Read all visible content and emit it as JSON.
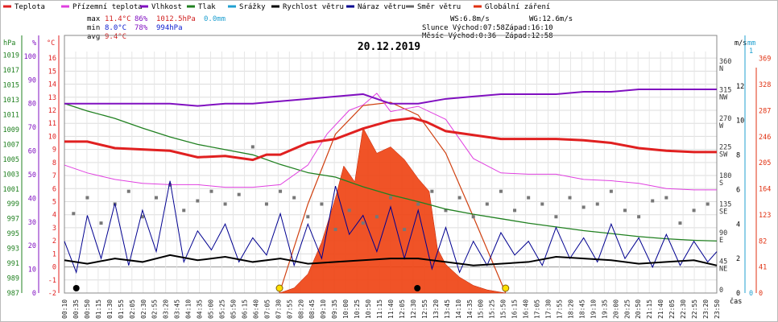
{
  "chart_data": {
    "type": "line",
    "title": "20.12.2019",
    "xlabel": "čas",
    "legend": [
      {
        "name": "Teplota",
        "color": "#e02020"
      },
      {
        "name": "Přízemní teplota",
        "color": "#e040e0"
      },
      {
        "name": "Vlhkost",
        "color": "#8010c0"
      },
      {
        "name": "Tlak",
        "color": "#208020"
      },
      {
        "name": "Srážky",
        "color": "#20a0d0"
      },
      {
        "name": "Rychlost větru",
        "color": "#000000"
      },
      {
        "name": "Náraz větru",
        "color": "#000090"
      },
      {
        "name": "Směr větru",
        "color": "#666666"
      },
      {
        "name": "Globální záření",
        "color": "#e03010"
      }
    ],
    "stats": {
      "max": {
        "label": "max",
        "temp": "11.4°C",
        "hum": "86%",
        "press": "1012.5hPa",
        "rain": "0.0mm"
      },
      "min": {
        "label": "min",
        "temp": "8.0°C",
        "hum": "78%",
        "press": "994hPa"
      },
      "avg": {
        "label": "avg",
        "temp": "9.4°C"
      },
      "ws": "WS:6.8m/s",
      "wg": "WG:12.6m/s",
      "sun": "Slunce Východ:07:58",
      "sun_set": "Západ:16:10",
      "moon": "Měsíc  Východ:0:36",
      "moon_set": "Západ:12:58"
    },
    "axes": {
      "pressure": {
        "unit": "hPa",
        "color": "#208020",
        "ticks": [
          "1019",
          "1017",
          "1015",
          "1013",
          "1011",
          "1009",
          "1007",
          "1005",
          "1003",
          "1001",
          "999",
          "997",
          "995",
          "993",
          "991",
          "989",
          "987"
        ]
      },
      "humidity": {
        "unit": "%",
        "color": "#8010c0",
        "ticks": [
          "100",
          "90",
          "80",
          "70",
          "60",
          "50",
          "40",
          "30",
          "20",
          "10",
          "0"
        ]
      },
      "temperature": {
        "unit": "°C",
        "color": "#e02020",
        "ticks": [
          "16",
          "15",
          "14",
          "13",
          "12",
          "11",
          "10",
          "9",
          "8",
          "7",
          "6",
          "5",
          "4",
          "3",
          "2",
          "1",
          "0",
          "-1",
          "-2"
        ]
      },
      "wind_dir": {
        "ticks": [
          {
            "v": "360",
            "d": "N"
          },
          {
            "v": "315",
            "d": "NW"
          },
          {
            "v": "270",
            "d": "W"
          },
          {
            "v": "225",
            "d": "SW"
          },
          {
            "v": "180",
            "d": "S"
          },
          {
            "v": "135",
            "d": "SE"
          },
          {
            "v": "90",
            "d": "E"
          },
          {
            "v": "45",
            "d": "NE"
          },
          {
            "v": "0",
            "d": ""
          }
        ]
      },
      "wind_speed": {
        "unit": "m/s",
        "ticks": [
          "12",
          "10",
          "8",
          "6",
          "4",
          "2",
          "0"
        ]
      },
      "rain": {
        "unit": "mm",
        "color": "#20a0d0",
        "ticks": [
          "1",
          "0"
        ]
      },
      "radiation": {
        "color": "#e03010",
        "ticks": [
          "369",
          "328",
          "287",
          "246",
          "205",
          "164",
          "123",
          "82",
          "41",
          "0"
        ]
      }
    },
    "x_ticks": [
      "00:10",
      "00:35",
      "00:50",
      "01:15",
      "01:30",
      "01:55",
      "02:05",
      "02:30",
      "02:55",
      "03:20",
      "03:45",
      "04:10",
      "04:35",
      "05:00",
      "05:25",
      "05:50",
      "06:15",
      "06:40",
      "07:05",
      "07:30",
      "07:55",
      "08:20",
      "08:45",
      "09:10",
      "09:35",
      "10:00",
      "10:25",
      "10:50",
      "11:15",
      "11:40",
      "12:05",
      "12:30",
      "12:55",
      "13:20",
      "13:45",
      "14:10",
      "14:35",
      "15:00",
      "15:25",
      "15:50",
      "16:15",
      "16:40",
      "17:05",
      "17:30",
      "17:55",
      "18:20",
      "18:45",
      "19:10",
      "19:35",
      "20:00",
      "20:25",
      "20:50",
      "21:15",
      "21:40",
      "22:05",
      "22:30",
      "22:55",
      "23:20",
      "23:50"
    ],
    "x_range_hours": [
      0.17,
      23.83
    ],
    "sunrise": 7.97,
    "sunset": 16.17,
    "moon_rise": 0.6,
    "moon_set": 12.97,
    "series": {
      "temperature": [
        [
          0.17,
          9.6
        ],
        [
          1,
          9.6
        ],
        [
          2,
          9.1
        ],
        [
          3,
          9.0
        ],
        [
          4,
          8.9
        ],
        [
          5,
          8.4
        ],
        [
          6,
          8.5
        ],
        [
          7,
          8.2
        ],
        [
          7.5,
          8.6
        ],
        [
          8,
          8.6
        ],
        [
          9,
          9.5
        ],
        [
          10,
          9.8
        ],
        [
          11,
          10.6
        ],
        [
          12,
          11.2
        ],
        [
          12.8,
          11.4
        ],
        [
          13.3,
          11.1
        ],
        [
          14,
          10.4
        ],
        [
          15,
          10.1
        ],
        [
          16,
          9.8
        ],
        [
          17,
          9.8
        ],
        [
          18,
          9.8
        ],
        [
          19,
          9.7
        ],
        [
          20,
          9.5
        ],
        [
          21,
          9.1
        ],
        [
          22,
          8.9
        ],
        [
          23,
          8.8
        ],
        [
          23.83,
          8.8
        ]
      ],
      "humidity": [
        [
          0.17,
          80
        ],
        [
          2,
          80
        ],
        [
          3,
          80
        ],
        [
          4,
          80
        ],
        [
          5,
          79
        ],
        [
          6,
          80
        ],
        [
          7,
          80
        ],
        [
          8,
          81
        ],
        [
          9,
          82
        ],
        [
          10,
          83
        ],
        [
          11,
          84
        ],
        [
          11.5,
          82
        ],
        [
          12,
          80
        ],
        [
          13,
          80
        ],
        [
          14,
          82
        ],
        [
          15,
          83
        ],
        [
          16,
          84
        ],
        [
          17,
          84
        ],
        [
          18,
          84
        ],
        [
          19,
          85
        ],
        [
          20,
          85
        ],
        [
          21,
          86
        ],
        [
          22,
          86
        ],
        [
          23.83,
          86
        ]
      ],
      "ground_temp": [
        [
          0.17,
          7.8
        ],
        [
          1,
          7.2
        ],
        [
          2,
          6.7
        ],
        [
          3,
          6.4
        ],
        [
          4,
          6.3
        ],
        [
          5,
          6.3
        ],
        [
          6,
          6.1
        ],
        [
          7,
          6.1
        ],
        [
          8,
          6.3
        ],
        [
          9,
          7.8
        ],
        [
          9.7,
          10.2
        ],
        [
          10.5,
          12.0
        ],
        [
          11,
          12.4
        ],
        [
          11.5,
          13.3
        ],
        [
          12,
          11.9
        ],
        [
          13,
          12.3
        ],
        [
          14,
          11.3
        ],
        [
          15,
          8.3
        ],
        [
          16,
          7.2
        ],
        [
          17,
          7.1
        ],
        [
          18,
          7.1
        ],
        [
          19,
          6.7
        ],
        [
          20,
          6.6
        ],
        [
          21,
          6.4
        ],
        [
          22,
          6.0
        ],
        [
          23,
          5.9
        ],
        [
          23.83,
          5.9
        ]
      ],
      "pressure": [
        [
          0.17,
          1012.5
        ],
        [
          1,
          1011.5
        ],
        [
          2,
          1010.5
        ],
        [
          3,
          1009.2
        ],
        [
          4,
          1008.0
        ],
        [
          5,
          1007.0
        ],
        [
          6,
          1006.3
        ],
        [
          7,
          1005.6
        ],
        [
          8,
          1004.3
        ],
        [
          9,
          1003.2
        ],
        [
          10,
          1002.6
        ],
        [
          11,
          1001.3
        ],
        [
          12,
          1000.2
        ],
        [
          13,
          999.3
        ],
        [
          14,
          998.3
        ],
        [
          15,
          997.6
        ],
        [
          16,
          997.0
        ],
        [
          17,
          996.4
        ],
        [
          18,
          995.9
        ],
        [
          19,
          995.4
        ],
        [
          20,
          995.0
        ],
        [
          21,
          994.6
        ],
        [
          22,
          994.3
        ],
        [
          23,
          994.1
        ],
        [
          23.83,
          994.0
        ]
      ],
      "wind_speed": [
        [
          0.17,
          1.9
        ],
        [
          1,
          1.7
        ],
        [
          2,
          2.0
        ],
        [
          3,
          1.8
        ],
        [
          4,
          2.2
        ],
        [
          5,
          1.9
        ],
        [
          6,
          2.1
        ],
        [
          7,
          1.8
        ],
        [
          8,
          2.0
        ],
        [
          9,
          1.7
        ],
        [
          10,
          1.8
        ],
        [
          11,
          1.9
        ],
        [
          12,
          2.0
        ],
        [
          13,
          2.0
        ],
        [
          14,
          1.8
        ],
        [
          15,
          1.6
        ],
        [
          16,
          1.7
        ],
        [
          17,
          1.8
        ],
        [
          18,
          2.1
        ],
        [
          19,
          2.0
        ],
        [
          20,
          1.9
        ],
        [
          21,
          1.7
        ],
        [
          22,
          1.8
        ],
        [
          23,
          1.9
        ],
        [
          23.83,
          1.6
        ]
      ],
      "wind_gust": [
        [
          0.17,
          3.0
        ],
        [
          0.6,
          1.2
        ],
        [
          1,
          4.5
        ],
        [
          1.5,
          2.0
        ],
        [
          2,
          5.2
        ],
        [
          2.5,
          1.6
        ],
        [
          3,
          4.8
        ],
        [
          3.5,
          2.4
        ],
        [
          4,
          6.5
        ],
        [
          4.5,
          1.8
        ],
        [
          5,
          3.6
        ],
        [
          5.5,
          2.5
        ],
        [
          6,
          4.0
        ],
        [
          6.5,
          1.8
        ],
        [
          7,
          3.2
        ],
        [
          7.5,
          2.2
        ],
        [
          8,
          4.6
        ],
        [
          8.5,
          1.6
        ],
        [
          9,
          4.0
        ],
        [
          9.5,
          2.0
        ],
        [
          10,
          6.2
        ],
        [
          10.5,
          3.4
        ],
        [
          11,
          4.5
        ],
        [
          11.5,
          2.4
        ],
        [
          12,
          5.0
        ],
        [
          12.5,
          2.0
        ],
        [
          13,
          4.8
        ],
        [
          13.5,
          1.4
        ],
        [
          14,
          3.8
        ],
        [
          14.5,
          1.2
        ],
        [
          15,
          3.0
        ],
        [
          15.5,
          1.6
        ],
        [
          16,
          3.5
        ],
        [
          16.5,
          2.2
        ],
        [
          17,
          3.0
        ],
        [
          17.5,
          1.6
        ],
        [
          18,
          3.8
        ],
        [
          18.5,
          2.0
        ],
        [
          19,
          3.2
        ],
        [
          19.5,
          1.8
        ],
        [
          20,
          4.0
        ],
        [
          20.5,
          2.0
        ],
        [
          21,
          3.2
        ],
        [
          21.5,
          1.5
        ],
        [
          22,
          3.4
        ],
        [
          22.5,
          1.6
        ],
        [
          23,
          3.0
        ],
        [
          23.5,
          1.8
        ],
        [
          23.83,
          2.4
        ]
      ],
      "wind_dir_sample": [
        [
          0.5,
          125
        ],
        [
          1,
          150
        ],
        [
          1.5,
          110
        ],
        [
          2,
          140
        ],
        [
          2.5,
          160
        ],
        [
          3,
          120
        ],
        [
          3.5,
          150
        ],
        [
          4,
          170
        ],
        [
          4.5,
          130
        ],
        [
          5,
          145
        ],
        [
          5.5,
          160
        ],
        [
          6,
          140
        ],
        [
          6.5,
          155
        ],
        [
          7,
          230
        ],
        [
          7.5,
          140
        ],
        [
          8,
          160
        ],
        [
          8.5,
          150
        ],
        [
          9,
          120
        ],
        [
          9.5,
          140
        ],
        [
          10,
          100
        ],
        [
          10.5,
          130
        ],
        [
          11,
          110
        ],
        [
          11.5,
          120
        ],
        [
          12,
          150
        ],
        [
          12.5,
          100
        ],
        [
          13,
          140
        ],
        [
          13.5,
          160
        ],
        [
          14,
          130
        ],
        [
          14.5,
          150
        ],
        [
          15,
          120
        ],
        [
          15.5,
          140
        ],
        [
          16,
          160
        ],
        [
          16.5,
          130
        ],
        [
          17,
          150
        ],
        [
          17.5,
          140
        ],
        [
          18,
          120
        ],
        [
          18.5,
          150
        ],
        [
          19,
          135
        ],
        [
          19.5,
          140
        ],
        [
          20,
          160
        ],
        [
          20.5,
          130
        ],
        [
          21,
          120
        ],
        [
          21.5,
          145
        ],
        [
          22,
          150
        ],
        [
          22.5,
          110
        ],
        [
          23,
          130
        ],
        [
          23.5,
          140
        ]
      ],
      "radiation": [
        [
          7.97,
          0
        ],
        [
          8.5,
          8
        ],
        [
          9,
          30
        ],
        [
          9.5,
          80
        ],
        [
          10,
          150
        ],
        [
          10.3,
          200
        ],
        [
          10.7,
          175
        ],
        [
          11,
          260
        ],
        [
          11.5,
          220
        ],
        [
          12,
          230
        ],
        [
          12.5,
          210
        ],
        [
          13,
          180
        ],
        [
          13.4,
          160
        ],
        [
          13.7,
          70
        ],
        [
          14,
          45
        ],
        [
          14.5,
          25
        ],
        [
          15,
          12
        ],
        [
          15.5,
          5
        ],
        [
          16.17,
          0
        ]
      ],
      "radiation_clear": [
        [
          7.97,
          0
        ],
        [
          9,
          140
        ],
        [
          10,
          250
        ],
        [
          11,
          295
        ],
        [
          12,
          300
        ],
        [
          13,
          280
        ],
        [
          14,
          220
        ],
        [
          15,
          120
        ],
        [
          16.17,
          0
        ]
      ]
    }
  }
}
